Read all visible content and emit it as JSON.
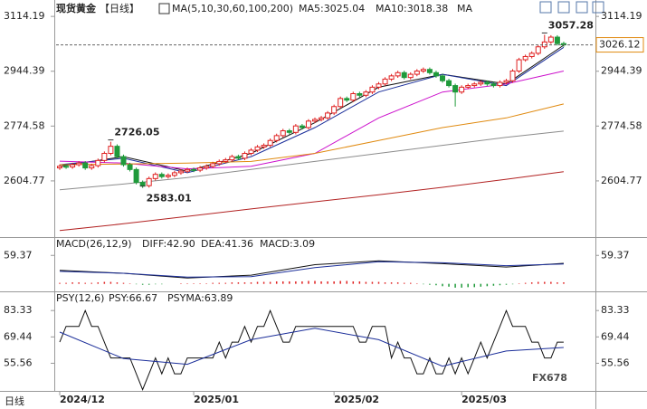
{
  "chart_data": [
    {
      "type": "candlestick",
      "title": "现货黄金",
      "period": "【日线】",
      "indicator": "MA(5,10,30,60,100,200)",
      "xticks": [
        {
          "value": 0,
          "label": "2024/12"
        },
        {
          "value": 21,
          "label": "2025/01"
        },
        {
          "value": 43,
          "label": "2025/02"
        },
        {
          "value": 63,
          "label": "2025/03"
        }
      ],
      "ylim": [
        2442,
        3137
      ],
      "yticks": [
        2604.77,
        2774.58,
        2944.39,
        3114.19
      ],
      "open": [
        2645,
        2650,
        2648,
        2655,
        2660,
        2645,
        2652,
        2668,
        2690,
        2712,
        2680,
        2655,
        2640,
        2600,
        2590,
        2612,
        2625,
        2618,
        2622,
        2630,
        2635,
        2640,
        2638,
        2645,
        2650,
        2658,
        2665,
        2670,
        2680,
        2675,
        2690,
        2700,
        2710,
        2715,
        2730,
        2745,
        2760,
        2755,
        2775,
        2770,
        2790,
        2795,
        2800,
        2815,
        2835,
        2860,
        2855,
        2875,
        2870,
        2880,
        2895,
        2905,
        2920,
        2930,
        2940,
        2925,
        2935,
        2945,
        2950,
        2940,
        2930,
        2915,
        2900,
        2880,
        2895,
        2900,
        2905,
        2910,
        2905,
        2900,
        2910,
        2915,
        2945,
        2980,
        2990,
        3000,
        3020,
        3035,
        3050,
        3030
      ],
      "high": [
        2656,
        2656,
        2661,
        2666,
        2666,
        2658,
        2674,
        2696,
        2726.05,
        2718,
        2686,
        2661,
        2646,
        2606,
        2618,
        2631,
        2631,
        2628,
        2636,
        2641,
        2646,
        2646,
        2651,
        2656,
        2664,
        2671,
        2676,
        2686,
        2686,
        2696,
        2706,
        2716,
        2721,
        2736,
        2751,
        2766,
        2766,
        2781,
        2781,
        2796,
        2801,
        2806,
        2821,
        2841,
        2866,
        2866,
        2881,
        2881,
        2886,
        2901,
        2911,
        2926,
        2936,
        2946,
        2946,
        2941,
        2951,
        2956,
        2956,
        2946,
        2936,
        2921,
        2906,
        2901,
        2906,
        2911,
        2916,
        2916,
        2911,
        2916,
        2921,
        2951,
        2986,
        2996,
        3006,
        3026,
        3057.28,
        3056,
        3056,
        3036
      ],
      "low": [
        2639,
        2642,
        2642,
        2649,
        2639,
        2639,
        2646,
        2662,
        2684,
        2674,
        2649,
        2634,
        2594,
        2583.01,
        2584,
        2606,
        2612,
        2612,
        2616,
        2624,
        2629,
        2632,
        2632,
        2639,
        2644,
        2652,
        2659,
        2664,
        2669,
        2669,
        2684,
        2694,
        2704,
        2709,
        2724,
        2739,
        2749,
        2749,
        2764,
        2764,
        2784,
        2789,
        2794,
        2809,
        2829,
        2849,
        2849,
        2864,
        2864,
        2874,
        2889,
        2899,
        2914,
        2924,
        2919,
        2919,
        2929,
        2939,
        2934,
        2924,
        2909,
        2894,
        2835,
        2874,
        2889,
        2894,
        2899,
        2899,
        2894,
        2894,
        2904,
        2909,
        2939,
        2974,
        2984,
        2994,
        3014,
        3029,
        3024,
        3020
      ],
      "close": [
        2650,
        2648,
        2655,
        2660,
        2645,
        2652,
        2668,
        2690,
        2712,
        2680,
        2655,
        2640,
        2600,
        2590,
        2612,
        2625,
        2618,
        2622,
        2630,
        2635,
        2640,
        2638,
        2645,
        2650,
        2658,
        2665,
        2670,
        2680,
        2675,
        2690,
        2700,
        2710,
        2715,
        2730,
        2745,
        2760,
        2755,
        2775,
        2770,
        2790,
        2795,
        2800,
        2815,
        2835,
        2860,
        2855,
        2875,
        2870,
        2880,
        2895,
        2905,
        2920,
        2930,
        2940,
        2925,
        2935,
        2945,
        2950,
        2940,
        2930,
        2915,
        2900,
        2880,
        2895,
        2900,
        2905,
        2910,
        2905,
        2900,
        2910,
        2915,
        2945,
        2980,
        2990,
        3000,
        3020,
        3035,
        3050,
        3030,
        3026.12
      ],
      "up_color": "#e02020",
      "down_color": "#1f9a3a",
      "ma_x": [
        0,
        10,
        20,
        30,
        40,
        50,
        60,
        70,
        79
      ],
      "overlays": [
        {
          "name": "MA5:3025.04",
          "color": "#111111",
          "values": [
            2650,
            2680,
            2635,
            2690,
            2785,
            2895,
            2935,
            2905,
            3025.04
          ]
        },
        {
          "name": "MA10:3018.38",
          "color": "#1c2f9a",
          "values": [
            2655,
            2675,
            2630,
            2680,
            2770,
            2880,
            2935,
            2900,
            3018.38
          ]
        },
        {
          "name": "MA",
          "color": "#cc11cc",
          "values": [
            2666,
            2660,
            2642,
            2650,
            2690,
            2800,
            2880,
            2905,
            2945
          ]
        },
        {
          "color": "#e08a10",
          "values": [
            2655,
            2657,
            2660,
            2665,
            2690,
            2730,
            2770,
            2800,
            2843
          ]
        },
        {
          "color": "#8c8c8c",
          "values": [
            2577,
            2595,
            2615,
            2640,
            2665,
            2690,
            2715,
            2740,
            2759
          ]
        },
        {
          "color": "#b22222",
          "values": [
            2451,
            2472,
            2495,
            2518,
            2540,
            2562,
            2585,
            2610,
            2633
          ]
        }
      ]
    },
    {
      "type": "macd",
      "title": "MACD(26,12,9)",
      "ylim": [
        -12,
        92
      ],
      "yticks": [
        59.37
      ],
      "x": [
        0,
        10,
        20,
        30,
        40,
        50,
        60,
        70,
        79
      ],
      "series": [
        {
          "name": "DIFF:42.90",
          "color": "#111111",
          "values": [
            28,
            22,
            12,
            18,
            40,
            48,
            42,
            35,
            42.9
          ]
        },
        {
          "name": "DEA:41.36",
          "color": "#1c2f9a",
          "values": [
            26,
            22,
            14,
            15,
            34,
            46,
            44,
            38,
            41.36
          ]
        }
      ],
      "histogram": {
        "name": "MACD:3.09",
        "color": "#cc11cc",
        "up_color": "#e02020",
        "down_color": "#1f9a3a",
        "values": [
          2,
          2,
          3,
          3,
          2,
          2,
          3,
          4,
          4,
          3,
          2,
          1,
          -1,
          -2,
          -2,
          -1,
          -1,
          0,
          0,
          1,
          1,
          1,
          1,
          1,
          2,
          2,
          2,
          3,
          3,
          3,
          3,
          4,
          4,
          4,
          5,
          5,
          5,
          5,
          5,
          6,
          6,
          5,
          5,
          5,
          6,
          6,
          5,
          5,
          4,
          4,
          4,
          3,
          3,
          3,
          2,
          2,
          1,
          -1,
          -2,
          -3,
          -5,
          -6,
          -8,
          -8,
          -7,
          -7,
          -6,
          -5,
          -4,
          -3,
          -2,
          -1,
          1,
          2,
          3,
          4,
          4,
          4,
          3,
          3.09
        ]
      }
    },
    {
      "type": "psy",
      "title": "PSY(12,6)",
      "ylim": [
        41,
        92
      ],
      "yticks": [
        83.33,
        69.44,
        55.56
      ],
      "psy": {
        "name": "PSY:66.67",
        "color": "#111111",
        "values": [
          66.67,
          75,
          75,
          75,
          83.33,
          75,
          75,
          66.67,
          58.33,
          58.33,
          58.33,
          58.33,
          50,
          41.67,
          50,
          58.33,
          50,
          58.33,
          50,
          50,
          58.33,
          58.33,
          58.33,
          58.33,
          58.33,
          66.67,
          58.33,
          66.67,
          66.67,
          75,
          66.67,
          75,
          75,
          83.33,
          75,
          66.67,
          66.67,
          75,
          75,
          75,
          75,
          75,
          75,
          75,
          75,
          75,
          75,
          66.67,
          66.67,
          75,
          75,
          75,
          58.33,
          66.67,
          58.33,
          58.33,
          50,
          50,
          58.33,
          50,
          50,
          58.33,
          50,
          58.33,
          50,
          58.33,
          66.67,
          58.33,
          66.67,
          75,
          83.33,
          75,
          75,
          75,
          66.67,
          66.67,
          58.33,
          58.33,
          66.67,
          66.67
        ]
      },
      "psyma": {
        "name": "PSYMA:63.89",
        "color": "#1c2f9a",
        "x": [
          0,
          10,
          20,
          30,
          40,
          50,
          60,
          70,
          79
        ],
        "values": [
          72,
          58,
          55,
          68,
          74,
          68,
          54,
          62,
          63.89
        ]
      }
    }
  ],
  "footer": "日线",
  "watermark": "FX678"
}
